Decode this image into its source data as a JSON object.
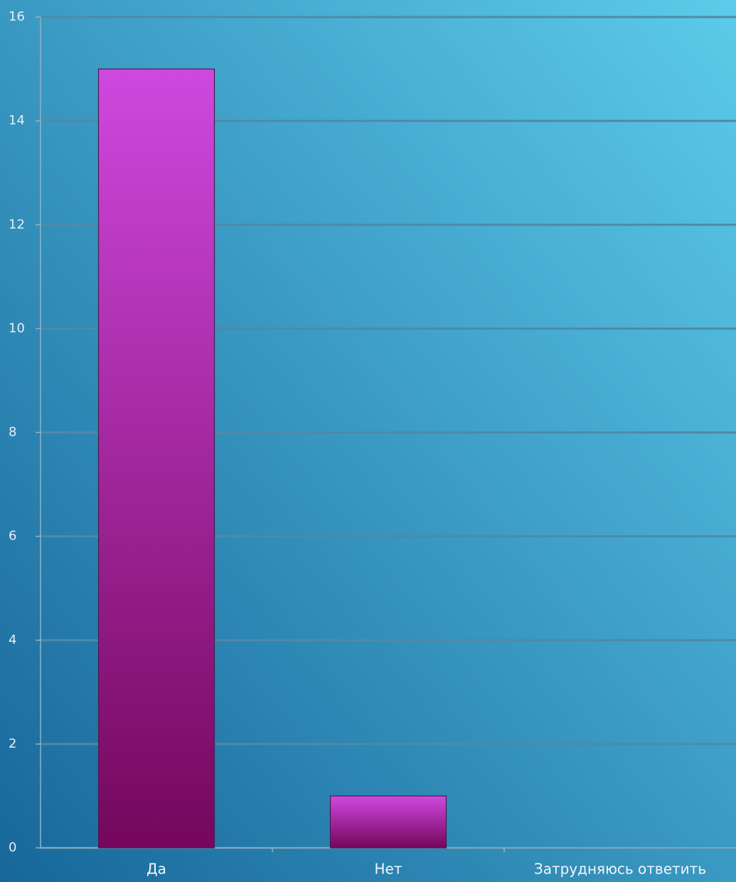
{
  "chart_data": {
    "type": "bar",
    "categories": [
      "Да",
      "Нет",
      "Затрудняюсь ответить"
    ],
    "values": [
      15,
      1,
      0
    ],
    "color": [
      "#cf48df",
      "#74075c"
    ],
    "ylim": [
      0,
      16
    ],
    "yticks": [
      0,
      2,
      4,
      6,
      8,
      10,
      12,
      14,
      16
    ],
    "grid": true
  }
}
